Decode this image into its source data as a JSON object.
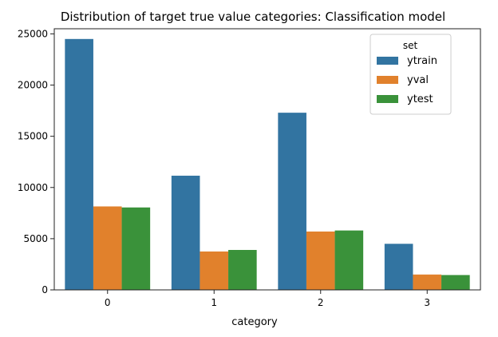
{
  "chart_data": {
    "type": "bar",
    "title": "Distribution of target true value categories: Classification model",
    "xlabel": "category",
    "ylabel": "",
    "categories": [
      "0",
      "1",
      "2",
      "3"
    ],
    "ylim": [
      0,
      25500
    ],
    "yticks": [
      0,
      5000,
      10000,
      15000,
      20000,
      25000
    ],
    "grid": false,
    "legend": {
      "title": "set",
      "placement": "top-right"
    },
    "series": [
      {
        "name": "ytrain",
        "color": "#3274a1",
        "values": [
          24500,
          11150,
          17300,
          4500
        ]
      },
      {
        "name": "yval",
        "color": "#e1812c",
        "values": [
          8150,
          3750,
          5700,
          1500
        ]
      },
      {
        "name": "ytest",
        "color": "#3a923a",
        "values": [
          8050,
          3900,
          5800,
          1450
        ]
      }
    ]
  }
}
